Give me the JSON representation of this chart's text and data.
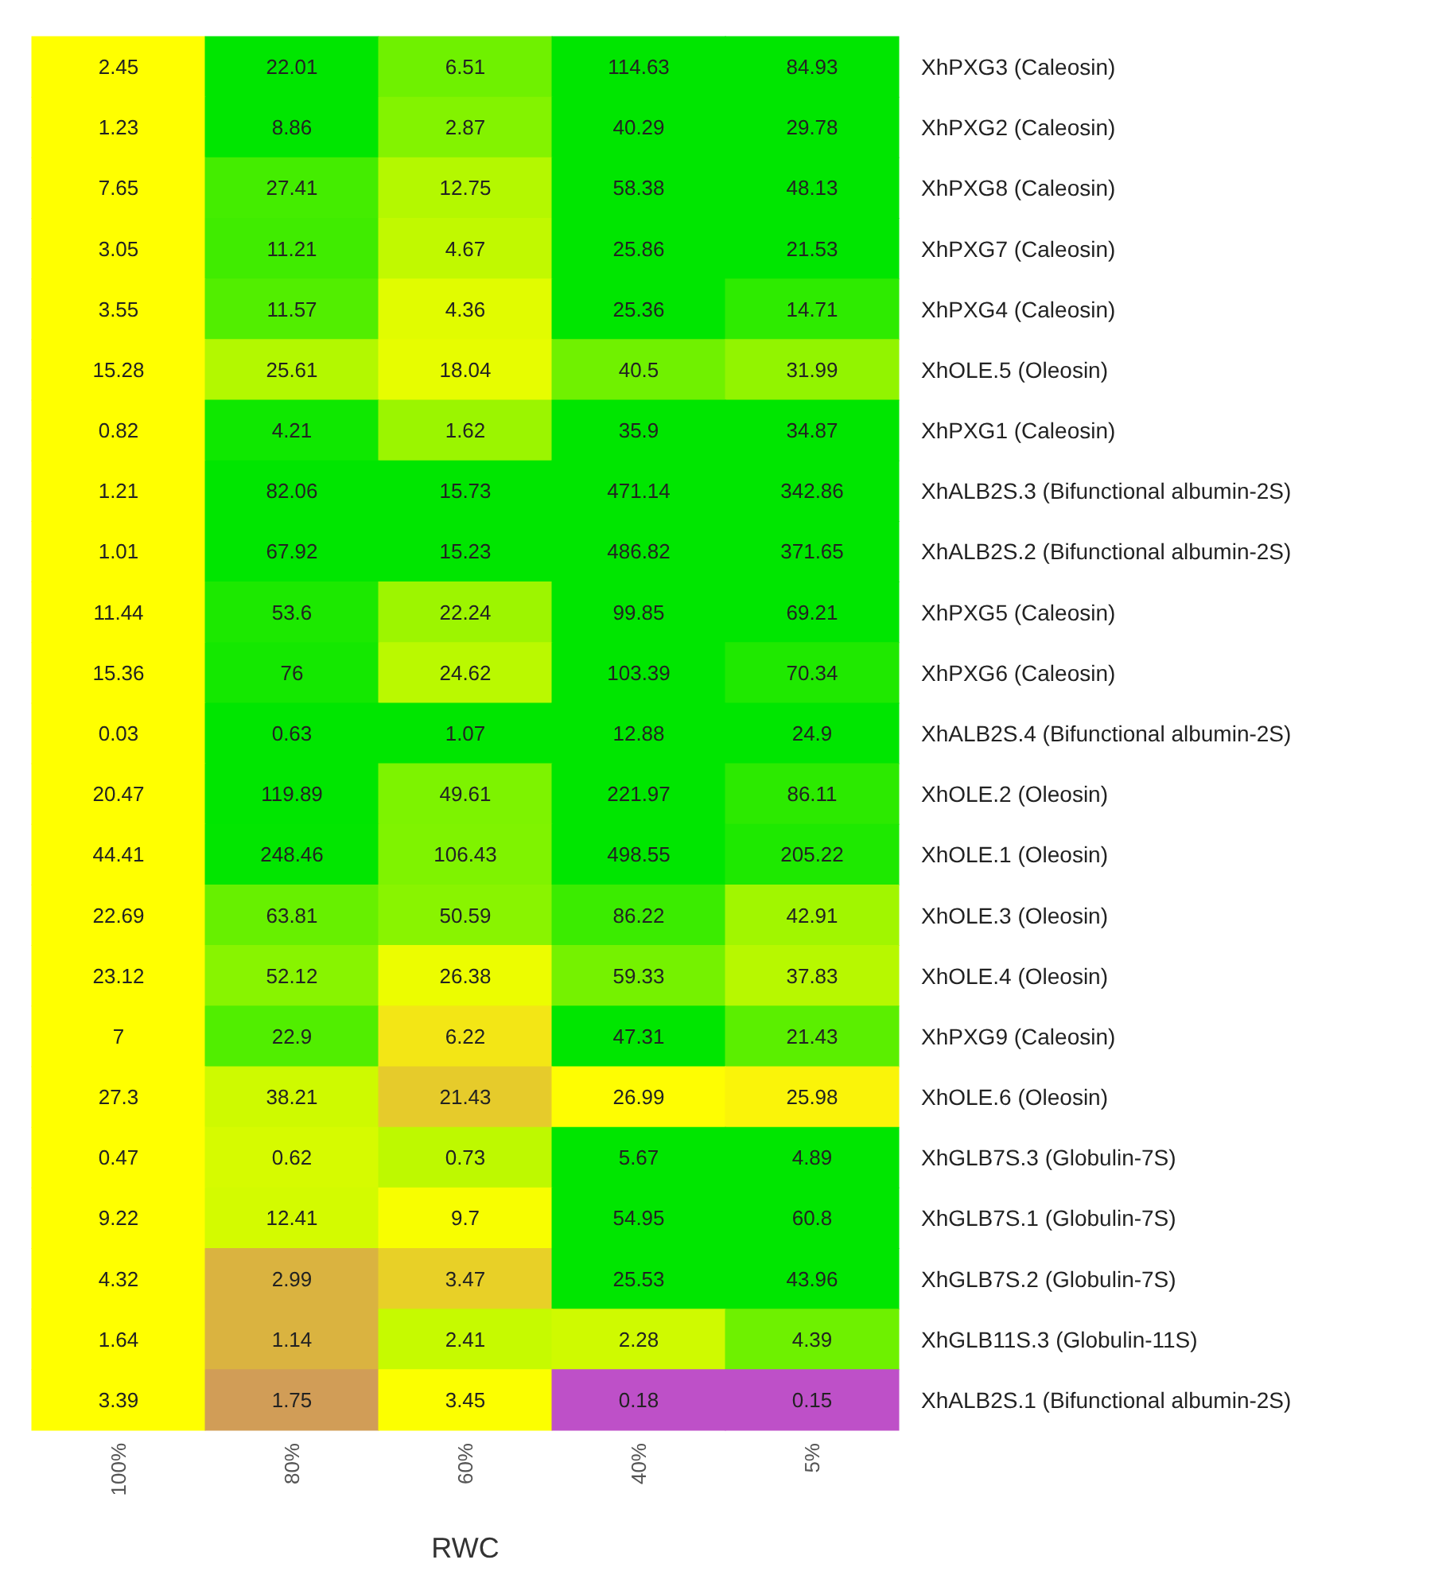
{
  "chart_data": {
    "type": "heatmap",
    "xlabel": "RWC",
    "categories": [
      "100%",
      "80%",
      "60%",
      "40%",
      "5%"
    ],
    "y_categories": [
      "XhPXG3 (Caleosin)",
      "XhPXG2 (Caleosin)",
      "XhPXG8 (Caleosin)",
      "XhPXG7 (Caleosin)",
      "XhPXG4 (Caleosin)",
      "XhOLE.5 (Oleosin)",
      "XhPXG1 (Caleosin)",
      "XhALB2S.3 (Bifunctional albumin-2S)",
      "XhALB2S.2 (Bifunctional albumin-2S)",
      "XhPXG5 (Caleosin)",
      "XhPXG6 (Caleosin)",
      "XhALB2S.4 (Bifunctional albumin-2S)",
      "XhOLE.2 (Oleosin)",
      "XhOLE.1 (Oleosin)",
      "XhOLE.3 (Oleosin)",
      "XhOLE.4 (Oleosin)",
      "XhPXG9 (Caleosin)",
      "XhOLE.6 (Oleosin)",
      "XhGLB7S.3 (Globulin-7S)",
      "XhGLB7S.1 (Globulin-7S)",
      "XhGLB7S.2 (Globulin-7S)",
      "XhGLB11S.3 (Globulin-11S)",
      "XhALB2S.1 (Bifunctional albumin-2S)"
    ],
    "cells": [
      [
        2.45,
        22.01,
        6.51,
        114.63,
        84.93
      ],
      [
        1.23,
        8.86,
        2.87,
        40.29,
        29.78
      ],
      [
        7.65,
        27.41,
        12.75,
        58.38,
        48.13
      ],
      [
        3.05,
        11.21,
        4.67,
        25.86,
        21.53
      ],
      [
        3.55,
        11.57,
        4.36,
        25.36,
        14.71
      ],
      [
        15.28,
        25.61,
        18.04,
        40.5,
        31.99
      ],
      [
        0.82,
        4.21,
        1.62,
        35.9,
        34.87
      ],
      [
        1.21,
        82.06,
        15.73,
        471.14,
        342.86
      ],
      [
        1.01,
        67.92,
        15.23,
        486.82,
        371.65
      ],
      [
        11.44,
        53.6,
        22.24,
        99.85,
        69.21
      ],
      [
        15.36,
        76,
        24.62,
        103.39,
        70.34
      ],
      [
        0.03,
        0.63,
        1.07,
        12.88,
        24.9
      ],
      [
        20.47,
        119.89,
        49.61,
        221.97,
        86.11
      ],
      [
        44.41,
        248.46,
        106.43,
        498.55,
        205.22
      ],
      [
        22.69,
        63.81,
        50.59,
        86.22,
        42.91
      ],
      [
        23.12,
        52.12,
        26.38,
        59.33,
        37.83
      ],
      [
        7,
        22.9,
        6.22,
        47.31,
        21.43
      ],
      [
        27.3,
        38.21,
        21.43,
        26.99,
        25.98
      ],
      [
        0.47,
        0.62,
        0.73,
        5.67,
        4.89
      ],
      [
        9.22,
        12.41,
        9.7,
        54.95,
        60.8
      ],
      [
        4.32,
        2.99,
        3.47,
        25.53,
        43.96
      ],
      [
        1.64,
        1.14,
        2.41,
        2.28,
        4.39
      ],
      [
        3.39,
        1.75,
        3.45,
        0.18,
        0.15
      ]
    ],
    "data_labels": true
  }
}
